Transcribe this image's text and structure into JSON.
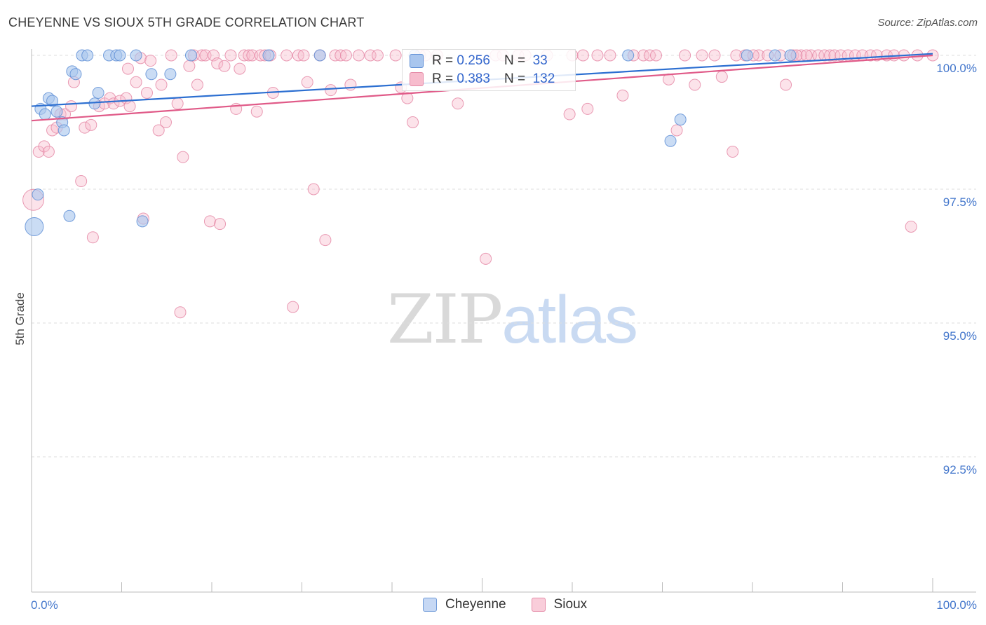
{
  "header": {
    "title": "CHEYENNE VS SIOUX 5TH GRADE CORRELATION CHART",
    "source": "Source: ZipAtlas.com"
  },
  "watermark": {
    "zip": "ZIP",
    "atlas": "atlas"
  },
  "legend_top": {
    "rows": [
      {
        "r_label": "R =",
        "r_value": "0.256",
        "n_label": "N =",
        "n_value": "33"
      },
      {
        "r_label": "R =",
        "r_value": "0.383",
        "n_label": "N =",
        "n_value": "132"
      }
    ]
  },
  "legend_bottom": {
    "series_a": "Cheyenne",
    "series_b": "Sioux"
  },
  "colors": {
    "cheyenne_fill": "#a9c6ee",
    "cheyenne_stroke": "#5f8fd6",
    "cheyenne_line": "#2c6fd1",
    "sioux_fill": "#f7bccd",
    "sioux_stroke": "#e58aa7",
    "sioux_line": "#e05a88",
    "grid": "#dedede",
    "axis": "#bbbbbb",
    "tick_text": "#4477cc"
  },
  "chart_data": {
    "type": "scatter",
    "title": "CHEYENNE VS SIOUX 5TH GRADE CORRELATION CHART",
    "xlabel": "",
    "ylabel": "5th Grade",
    "xlim": [
      0,
      100
    ],
    "ylim": [
      90.0,
      100.2
    ],
    "x_tick_labels": [
      "0.0%",
      "100.0%"
    ],
    "y_ticks": [
      92.5,
      95.0,
      97.5,
      100.0
    ],
    "y_tick_labels": [
      "92.5%",
      "95.0%",
      "97.5%",
      "100.0%"
    ],
    "grid": true,
    "legend_position": "bottom-center",
    "series": [
      {
        "name": "Cheyenne",
        "r": 0.256,
        "n": 33,
        "trend": {
          "x": [
            0,
            100
          ],
          "y": [
            99.05,
            100.03
          ]
        },
        "points": [
          {
            "x": 0.3,
            "y": 96.8,
            "s": 13
          },
          {
            "x": 0.7,
            "y": 97.4,
            "s": 8
          },
          {
            "x": 1.0,
            "y": 99.0,
            "s": 8
          },
          {
            "x": 1.5,
            "y": 98.9,
            "s": 8
          },
          {
            "x": 1.9,
            "y": 99.2,
            "s": 8
          },
          {
            "x": 2.3,
            "y": 99.15,
            "s": 8
          },
          {
            "x": 2.8,
            "y": 98.95,
            "s": 8
          },
          {
            "x": 3.4,
            "y": 98.75,
            "s": 8
          },
          {
            "x": 3.6,
            "y": 98.6,
            "s": 8
          },
          {
            "x": 4.2,
            "y": 97.0,
            "s": 8
          },
          {
            "x": 4.5,
            "y": 99.7,
            "s": 8
          },
          {
            "x": 4.9,
            "y": 99.65,
            "s": 8
          },
          {
            "x": 5.6,
            "y": 100.0,
            "s": 8
          },
          {
            "x": 6.2,
            "y": 100.0,
            "s": 8
          },
          {
            "x": 7.0,
            "y": 99.1,
            "s": 8
          },
          {
            "x": 7.4,
            "y": 99.3,
            "s": 8
          },
          {
            "x": 8.6,
            "y": 100.0,
            "s": 8
          },
          {
            "x": 9.4,
            "y": 100.0,
            "s": 8
          },
          {
            "x": 9.8,
            "y": 100.0,
            "s": 8
          },
          {
            "x": 11.6,
            "y": 100.0,
            "s": 8
          },
          {
            "x": 12.3,
            "y": 96.9,
            "s": 8
          },
          {
            "x": 13.3,
            "y": 99.65,
            "s": 8
          },
          {
            "x": 15.4,
            "y": 99.65,
            "s": 8
          },
          {
            "x": 17.7,
            "y": 100.0,
            "s": 8
          },
          {
            "x": 26.3,
            "y": 100.0,
            "s": 8
          },
          {
            "x": 32.0,
            "y": 100.0,
            "s": 8
          },
          {
            "x": 42.5,
            "y": 100.0,
            "s": 8
          },
          {
            "x": 66.2,
            "y": 100.0,
            "s": 8
          },
          {
            "x": 70.9,
            "y": 98.4,
            "s": 8
          },
          {
            "x": 72.0,
            "y": 98.8,
            "s": 8
          },
          {
            "x": 79.4,
            "y": 100.0,
            "s": 8
          },
          {
            "x": 82.5,
            "y": 100.0,
            "s": 8
          },
          {
            "x": 84.2,
            "y": 100.0,
            "s": 8
          }
        ]
      },
      {
        "name": "Sioux",
        "r": 0.383,
        "n": 132,
        "trend": {
          "x": [
            0,
            100
          ],
          "y": [
            98.78,
            100.0
          ]
        },
        "points": [
          {
            "x": 0.2,
            "y": 97.3,
            "s": 15
          },
          {
            "x": 0.8,
            "y": 98.2,
            "s": 8
          },
          {
            "x": 1.4,
            "y": 98.3,
            "s": 8
          },
          {
            "x": 1.9,
            "y": 98.2,
            "s": 8
          },
          {
            "x": 2.3,
            "y": 98.6,
            "s": 8
          },
          {
            "x": 2.8,
            "y": 98.65,
            "s": 8
          },
          {
            "x": 3.2,
            "y": 98.9,
            "s": 8
          },
          {
            "x": 3.7,
            "y": 98.9,
            "s": 8
          },
          {
            "x": 4.4,
            "y": 99.05,
            "s": 8
          },
          {
            "x": 4.7,
            "y": 99.5,
            "s": 8
          },
          {
            "x": 5.5,
            "y": 97.65,
            "s": 8
          },
          {
            "x": 5.9,
            "y": 98.65,
            "s": 8
          },
          {
            "x": 6.6,
            "y": 98.7,
            "s": 8
          },
          {
            "x": 6.8,
            "y": 96.6,
            "s": 8
          },
          {
            "x": 7.5,
            "y": 99.05,
            "s": 8
          },
          {
            "x": 8.1,
            "y": 99.1,
            "s": 8
          },
          {
            "x": 8.7,
            "y": 99.2,
            "s": 8
          },
          {
            "x": 9.1,
            "y": 99.1,
            "s": 8
          },
          {
            "x": 9.8,
            "y": 99.15,
            "s": 8
          },
          {
            "x": 10.5,
            "y": 99.2,
            "s": 8
          },
          {
            "x": 10.7,
            "y": 99.75,
            "s": 8
          },
          {
            "x": 10.9,
            "y": 99.05,
            "s": 8
          },
          {
            "x": 11.6,
            "y": 99.5,
            "s": 8
          },
          {
            "x": 12.1,
            "y": 99.95,
            "s": 8
          },
          {
            "x": 12.4,
            "y": 96.95,
            "s": 8
          },
          {
            "x": 12.8,
            "y": 99.3,
            "s": 8
          },
          {
            "x": 13.2,
            "y": 99.9,
            "s": 8
          },
          {
            "x": 14.1,
            "y": 98.6,
            "s": 8
          },
          {
            "x": 14.4,
            "y": 99.45,
            "s": 8
          },
          {
            "x": 14.9,
            "y": 98.75,
            "s": 8
          },
          {
            "x": 15.5,
            "y": 100.0,
            "s": 8
          },
          {
            "x": 16.2,
            "y": 99.1,
            "s": 8
          },
          {
            "x": 16.5,
            "y": 95.2,
            "s": 8
          },
          {
            "x": 16.8,
            "y": 98.1,
            "s": 8
          },
          {
            "x": 17.5,
            "y": 99.8,
            "s": 8
          },
          {
            "x": 18.0,
            "y": 100.0,
            "s": 8
          },
          {
            "x": 18.4,
            "y": 99.45,
            "s": 8
          },
          {
            "x": 18.9,
            "y": 100.0,
            "s": 8
          },
          {
            "x": 19.3,
            "y": 100.0,
            "s": 8
          },
          {
            "x": 19.8,
            "y": 96.9,
            "s": 8
          },
          {
            "x": 20.2,
            "y": 100.0,
            "s": 8
          },
          {
            "x": 20.6,
            "y": 99.85,
            "s": 8
          },
          {
            "x": 20.9,
            "y": 96.85,
            "s": 8
          },
          {
            "x": 21.4,
            "y": 99.8,
            "s": 8
          },
          {
            "x": 22.1,
            "y": 100.0,
            "s": 8
          },
          {
            "x": 22.7,
            "y": 99.0,
            "s": 8
          },
          {
            "x": 23.1,
            "y": 99.75,
            "s": 8
          },
          {
            "x": 23.6,
            "y": 100.0,
            "s": 8
          },
          {
            "x": 24.1,
            "y": 100.0,
            "s": 8
          },
          {
            "x": 24.5,
            "y": 100.0,
            "s": 8
          },
          {
            "x": 25.0,
            "y": 98.95,
            "s": 8
          },
          {
            "x": 25.4,
            "y": 100.0,
            "s": 8
          },
          {
            "x": 25.9,
            "y": 100.0,
            "s": 8
          },
          {
            "x": 26.5,
            "y": 100.0,
            "s": 8
          },
          {
            "x": 26.8,
            "y": 99.3,
            "s": 8
          },
          {
            "x": 28.3,
            "y": 100.0,
            "s": 8
          },
          {
            "x": 29.0,
            "y": 95.3,
            "s": 8
          },
          {
            "x": 29.6,
            "y": 100.0,
            "s": 8
          },
          {
            "x": 30.2,
            "y": 100.0,
            "s": 8
          },
          {
            "x": 30.6,
            "y": 99.5,
            "s": 8
          },
          {
            "x": 31.3,
            "y": 97.5,
            "s": 8
          },
          {
            "x": 32.0,
            "y": 100.0,
            "s": 8
          },
          {
            "x": 32.6,
            "y": 96.55,
            "s": 8
          },
          {
            "x": 33.2,
            "y": 99.35,
            "s": 8
          },
          {
            "x": 33.7,
            "y": 100.0,
            "s": 8
          },
          {
            "x": 34.3,
            "y": 100.0,
            "s": 8
          },
          {
            "x": 34.9,
            "y": 100.0,
            "s": 8
          },
          {
            "x": 35.4,
            "y": 99.45,
            "s": 8
          },
          {
            "x": 36.3,
            "y": 100.0,
            "s": 8
          },
          {
            "x": 37.6,
            "y": 100.0,
            "s": 8
          },
          {
            "x": 38.4,
            "y": 100.0,
            "s": 8
          },
          {
            "x": 40.4,
            "y": 100.0,
            "s": 8
          },
          {
            "x": 41.0,
            "y": 99.4,
            "s": 8
          },
          {
            "x": 41.7,
            "y": 99.2,
            "s": 8
          },
          {
            "x": 42.3,
            "y": 98.75,
            "s": 8
          },
          {
            "x": 43.1,
            "y": 100.0,
            "s": 8
          },
          {
            "x": 43.7,
            "y": 100.0,
            "s": 8
          },
          {
            "x": 45.0,
            "y": 100.0,
            "s": 8
          },
          {
            "x": 47.3,
            "y": 99.1,
            "s": 8
          },
          {
            "x": 50.4,
            "y": 96.2,
            "s": 8
          },
          {
            "x": 51.5,
            "y": 100.0,
            "s": 8
          },
          {
            "x": 52.3,
            "y": 100.0,
            "s": 8
          },
          {
            "x": 54.0,
            "y": 100.0,
            "s": 8
          },
          {
            "x": 54.8,
            "y": 100.0,
            "s": 8
          },
          {
            "x": 57.2,
            "y": 100.0,
            "s": 8
          },
          {
            "x": 59.7,
            "y": 98.9,
            "s": 8
          },
          {
            "x": 61.2,
            "y": 100.0,
            "s": 8
          },
          {
            "x": 61.7,
            "y": 99.0,
            "s": 8
          },
          {
            "x": 64.2,
            "y": 100.0,
            "s": 8
          },
          {
            "x": 65.6,
            "y": 99.25,
            "s": 8
          },
          {
            "x": 67.9,
            "y": 100.0,
            "s": 8
          },
          {
            "x": 68.6,
            "y": 100.0,
            "s": 8
          },
          {
            "x": 69.3,
            "y": 100.0,
            "s": 8
          },
          {
            "x": 70.7,
            "y": 99.55,
            "s": 8
          },
          {
            "x": 71.6,
            "y": 98.6,
            "s": 8
          },
          {
            "x": 73.6,
            "y": 99.45,
            "s": 8
          },
          {
            "x": 74.4,
            "y": 100.0,
            "s": 8
          },
          {
            "x": 75.8,
            "y": 100.0,
            "s": 8
          },
          {
            "x": 76.6,
            "y": 99.6,
            "s": 8
          },
          {
            "x": 77.8,
            "y": 98.2,
            "s": 8
          },
          {
            "x": 79.2,
            "y": 100.0,
            "s": 8
          },
          {
            "x": 80.7,
            "y": 100.0,
            "s": 8
          },
          {
            "x": 81.7,
            "y": 100.0,
            "s": 8
          },
          {
            "x": 83.1,
            "y": 100.0,
            "s": 8
          },
          {
            "x": 83.7,
            "y": 99.45,
            "s": 8
          },
          {
            "x": 84.5,
            "y": 100.0,
            "s": 8
          },
          {
            "x": 85.4,
            "y": 100.0,
            "s": 8
          },
          {
            "x": 86.5,
            "y": 100.0,
            "s": 8
          },
          {
            "x": 87.3,
            "y": 100.0,
            "s": 8
          },
          {
            "x": 88.0,
            "y": 100.0,
            "s": 8
          },
          {
            "x": 88.6,
            "y": 100.0,
            "s": 8
          },
          {
            "x": 89.1,
            "y": 100.0,
            "s": 8
          },
          {
            "x": 89.8,
            "y": 100.0,
            "s": 8
          },
          {
            "x": 90.6,
            "y": 100.0,
            "s": 8
          },
          {
            "x": 91.4,
            "y": 100.0,
            "s": 8
          },
          {
            "x": 92.2,
            "y": 100.0,
            "s": 8
          },
          {
            "x": 93.1,
            "y": 100.0,
            "s": 8
          },
          {
            "x": 93.8,
            "y": 100.0,
            "s": 8
          },
          {
            "x": 94.9,
            "y": 100.0,
            "s": 8
          },
          {
            "x": 95.7,
            "y": 100.0,
            "s": 8
          },
          {
            "x": 96.8,
            "y": 100.0,
            "s": 8
          },
          {
            "x": 97.6,
            "y": 96.8,
            "s": 8
          },
          {
            "x": 98.3,
            "y": 100.0,
            "s": 8
          },
          {
            "x": 100.0,
            "y": 100.0,
            "s": 8
          },
          {
            "x": 60.0,
            "y": 100.0,
            "s": 8
          },
          {
            "x": 62.8,
            "y": 100.0,
            "s": 8
          },
          {
            "x": 66.8,
            "y": 100.0,
            "s": 8
          },
          {
            "x": 72.5,
            "y": 100.0,
            "s": 8
          },
          {
            "x": 78.2,
            "y": 100.0,
            "s": 8
          },
          {
            "x": 80.1,
            "y": 100.0,
            "s": 8
          },
          {
            "x": 84.9,
            "y": 100.0,
            "s": 8
          },
          {
            "x": 86.0,
            "y": 100.0,
            "s": 8
          }
        ]
      }
    ]
  }
}
